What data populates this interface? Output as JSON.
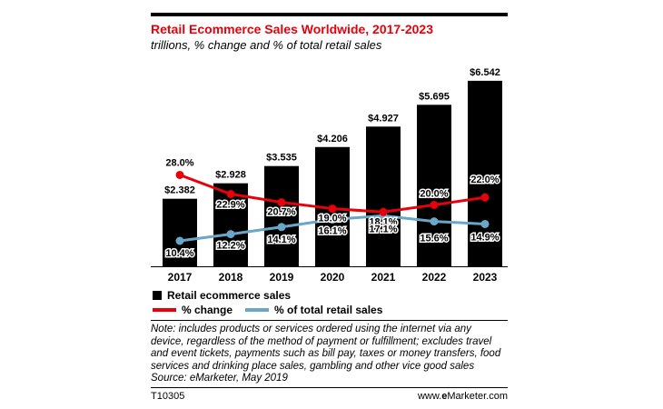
{
  "title": "Retail Ecommerce Sales Worldwide, 2017-2023",
  "subtitle": "trillions, % change and % of total retail sales",
  "legend": {
    "sales": "Retail ecommerce sales",
    "change": "% change",
    "share": "% of total retail sales"
  },
  "note_lines": [
    "Note: includes products or services ordered using the internet via any",
    "device, regardless of the method of payment or fulfillment; excludes travel",
    "and event tickets, payments such as bill pay, taxes or money transfers, food",
    "services and drinking place sales, gambling and other vice good sales",
    "Source: eMarketer, May 2019"
  ],
  "footer": {
    "id": "T10305",
    "brand_prefix": "www.",
    "brand_bold": "e",
    "brand_suffix": "Marketer.com"
  },
  "colors": {
    "title": "#e8000b",
    "bars": "#000000",
    "change": "#e8000b",
    "share": "#6aa6c8"
  },
  "chart_data": {
    "type": "bar",
    "categories": [
      "2017",
      "2018",
      "2019",
      "2020",
      "2021",
      "2022",
      "2023"
    ],
    "series": [
      {
        "name": "Retail ecommerce sales",
        "type": "bar",
        "values": [
          2.382,
          2.928,
          3.535,
          4.206,
          4.927,
          5.695,
          6.542
        ],
        "labels": [
          "$2.382",
          "$2.928",
          "$3.535",
          "$4.206",
          "$4.927",
          "$5.695",
          "$6.542"
        ]
      },
      {
        "name": "% change",
        "type": "line",
        "values": [
          28.0,
          22.9,
          20.7,
          19.0,
          18.1,
          20.0,
          22.0
        ],
        "labels": [
          "28.0%",
          "22.9%",
          "20.7%",
          "19.0%",
          "18.1%",
          "20.0%",
          "22.0%"
        ]
      },
      {
        "name": "% of total retail sales",
        "type": "line",
        "values": [
          10.4,
          12.2,
          14.1,
          16.1,
          17.1,
          15.6,
          14.9
        ],
        "labels": [
          "10.4%",
          "12.2%",
          "14.1%",
          "16.1%",
          "17.1%",
          "15.6%",
          "14.9%"
        ]
      }
    ]
  }
}
